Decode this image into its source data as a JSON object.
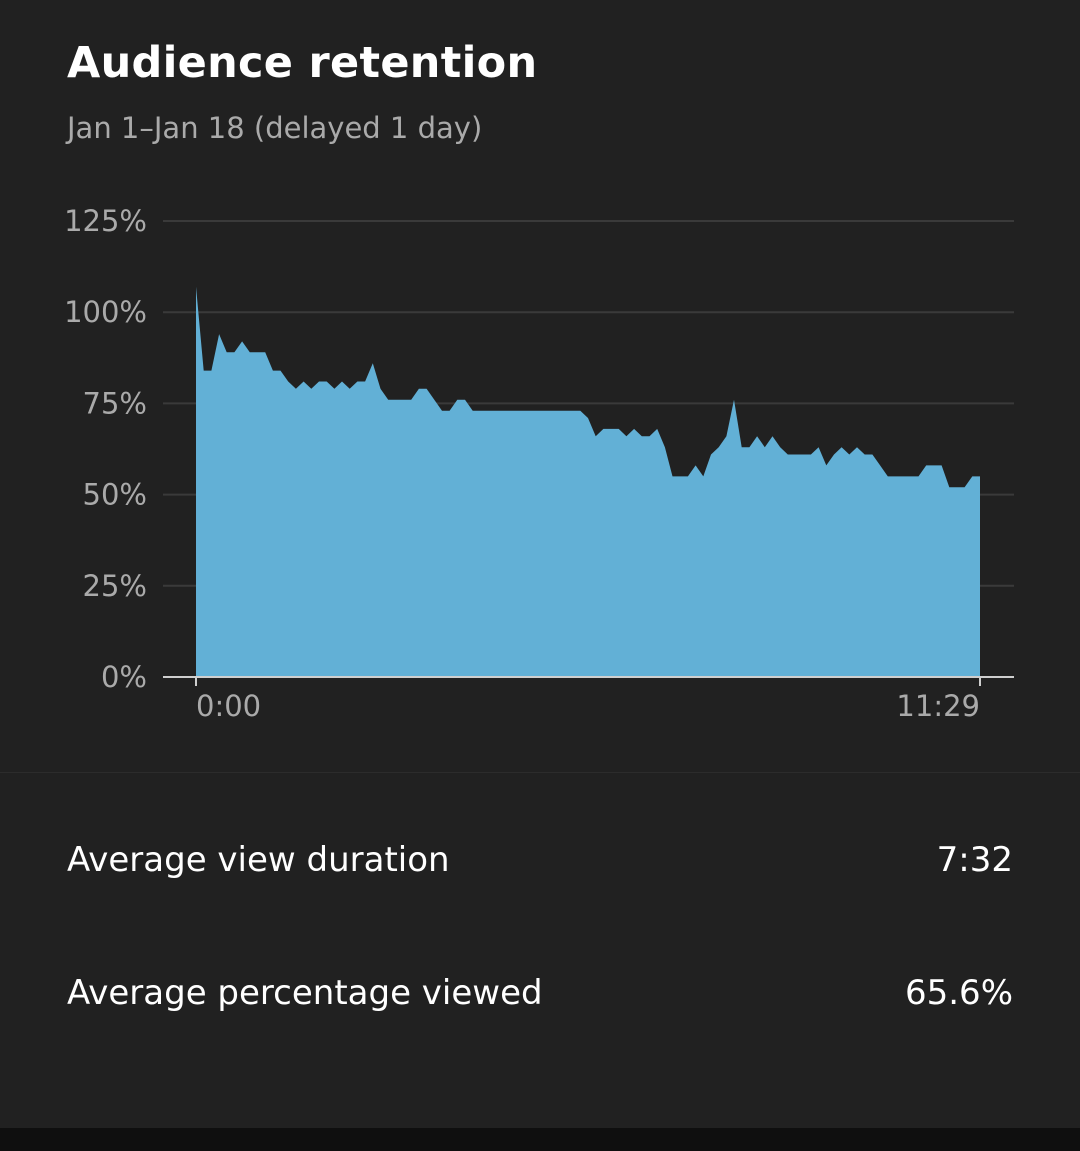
{
  "card": {
    "title": "Audience retention",
    "subtitle": "Jan 1–Jan 18 (delayed 1 day)"
  },
  "colors": {
    "background": "#212121",
    "area_fill": "#62b0d6",
    "grid": "#3a3a3a",
    "axis_text": "#aaaaaa"
  },
  "chart_data": {
    "type": "area",
    "title": "",
    "xlabel": "",
    "ylabel": "",
    "y_ticks": [
      "0%",
      "25%",
      "50%",
      "75%",
      "100%",
      "125%"
    ],
    "y_tick_values": [
      0,
      25,
      50,
      75,
      100,
      125
    ],
    "ylim": [
      0,
      125
    ],
    "x_tick_labels": [
      "0:00",
      "11:29"
    ],
    "xlim": [
      0,
      689
    ],
    "grid": true,
    "series": [
      {
        "values": [
          107,
          84,
          84,
          94,
          89,
          89,
          92,
          89,
          89,
          89,
          84,
          84,
          81,
          79,
          81,
          79,
          81,
          81,
          79,
          81,
          79,
          81,
          81,
          86,
          79,
          76,
          76,
          76,
          76,
          79,
          79,
          76,
          73,
          73,
          76,
          76,
          73,
          73,
          73,
          73,
          73,
          73,
          73,
          73,
          73,
          73,
          73,
          73,
          73,
          73,
          73,
          71,
          66,
          68,
          68,
          68,
          66,
          68,
          66,
          66,
          68,
          63,
          55,
          55,
          55,
          58,
          55,
          61,
          63,
          66,
          76,
          63,
          63,
          66,
          63,
          66,
          63,
          61,
          61,
          61,
          61,
          63,
          58,
          61,
          63,
          61,
          63,
          61,
          61,
          58,
          55,
          55,
          55,
          55,
          55,
          58,
          58,
          58,
          52,
          52,
          52,
          55,
          55
        ]
      }
    ]
  },
  "metrics": [
    {
      "label": "Average view duration",
      "value": "7:32"
    },
    {
      "label": "Average percentage viewed",
      "value": "65.6%"
    }
  ]
}
